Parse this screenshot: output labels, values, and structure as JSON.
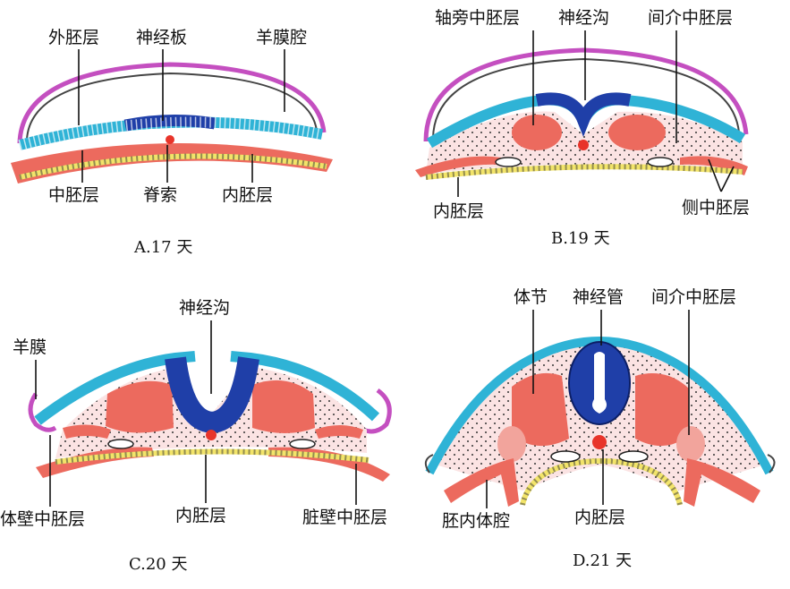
{
  "colors": {
    "ectoderm": "#2fb3d6",
    "neural": "#1f3fa8",
    "mesoderm": "#ec6a5e",
    "mesoderm_light": "#f6c9c6",
    "endoderm": "#f2e46a",
    "amnion": "#c44fc0",
    "notochord": "#e8342a"
  },
  "panels": {
    "a": {
      "caption": "A.17 天",
      "labels": {
        "ectoderm": "外胚层",
        "neural_plate": "神经板",
        "amniotic_cavity": "羊膜腔",
        "mesoderm": "中胚层",
        "notochord": "脊索",
        "endoderm": "内胚层"
      }
    },
    "b": {
      "caption": "B.19 天",
      "labels": {
        "paraxial_mesoderm": "轴旁中胚层",
        "neural_groove": "神经沟",
        "intermediate_mesoderm": "间介中胚层",
        "endoderm": "内胚层",
        "lateral_mesoderm": "侧中胚层"
      }
    },
    "c": {
      "caption": "C.20 天",
      "labels": {
        "neural_groove": "神经沟",
        "amnion": "羊膜",
        "somatic_mesoderm": "体壁中胚层",
        "endoderm": "内胚层",
        "splanchnic_mesoderm": "脏壁中胚层"
      }
    },
    "d": {
      "caption": "D.21 天",
      "labels": {
        "somite": "体节",
        "neural_tube": "神经管",
        "intermediate_mesoderm": "间介中胚层",
        "intraembryonic_coelom": "胚内体腔",
        "endoderm": "内胚层"
      }
    }
  }
}
